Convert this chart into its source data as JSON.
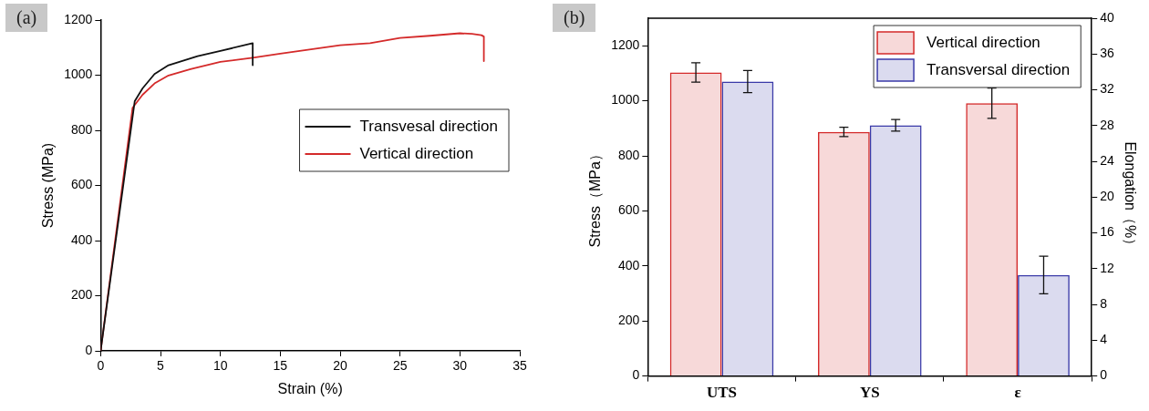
{
  "chart_data": [
    {
      "type": "line",
      "title": "(a)",
      "xlabel": "Strain (%)",
      "ylabel": "Stress (MPa)",
      "xlim": [
        0,
        35
      ],
      "xticks": [
        0,
        5,
        10,
        15,
        20,
        25,
        30,
        35
      ],
      "ylim": [
        0,
        1200
      ],
      "yticks": [
        0,
        200,
        400,
        600,
        800,
        1000,
        1200
      ],
      "legend": "right",
      "series": [
        {
          "name": "Transvesal direction",
          "color": "#111111",
          "x": [
            0,
            2.85,
            3.5,
            4.5,
            5.67,
            8.1,
            10,
            12.7,
            12.7
          ],
          "values": [
            0,
            906,
            952,
            1004,
            1036,
            1069,
            1088,
            1116,
            1036
          ]
        },
        {
          "name": "Vertical direction",
          "color": "#d42a2a",
          "x": [
            0,
            2.67,
            3.5,
            4.5,
            5.67,
            7.5,
            10,
            12.7,
            15,
            20,
            22.5,
            25,
            27.5,
            30,
            31,
            31.8,
            32,
            32
          ],
          "values": [
            0,
            882,
            929,
            970,
            999,
            1022,
            1048,
            1063,
            1078,
            1109,
            1116,
            1135,
            1143,
            1152,
            1150,
            1145,
            1140,
            1051
          ]
        }
      ]
    },
    {
      "type": "bar",
      "title": "(b)",
      "ylabel": "Stress（MPa）",
      "y2label": "Elongation（%）",
      "categories": [
        "UTS",
        "YS",
        "ε"
      ],
      "ylim": [
        0,
        1300
      ],
      "yticks": [
        0,
        200,
        400,
        600,
        800,
        1000,
        1200
      ],
      "y2lim": [
        0,
        40
      ],
      "y2ticks": [
        0,
        4,
        8,
        12,
        16,
        20,
        24,
        28,
        32,
        36,
        40
      ],
      "legend": "top right",
      "series": [
        {
          "name": "Vertical direction",
          "color": "#d42a2a",
          "values": [
            1103,
            887,
            null
          ],
          "errors": [
            35,
            17,
            null
          ]
        },
        {
          "name": "Transversal direction",
          "color": "#3a3aa8",
          "values": [
            1070,
            911,
            null
          ],
          "errors": [
            40,
            21,
            null
          ]
        },
        {
          "color": "#d42a2a",
          "axis": "y2",
          "values": [
            null,
            null,
            30.5
          ],
          "errors": [
            null,
            null,
            1.7
          ]
        },
        {
          "color": "#3a3aa8",
          "axis": "y2",
          "values": [
            null,
            null,
            11.3
          ],
          "errors": [
            null,
            null,
            2.1
          ]
        }
      ]
    }
  ]
}
